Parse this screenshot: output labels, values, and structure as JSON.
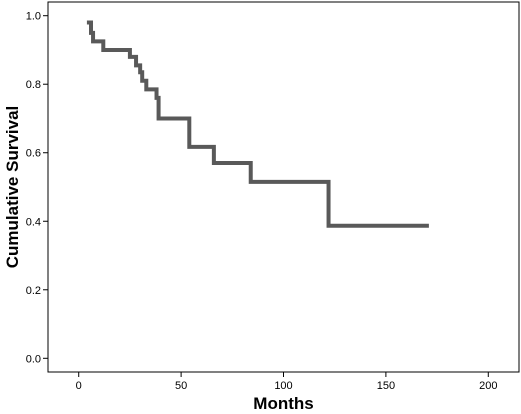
{
  "chart_data": {
    "type": "line",
    "xlabel": "Months",
    "ylabel": "Cumulative Survival",
    "xlim": [
      -15,
      215
    ],
    "ylim": [
      -0.04,
      1.04
    ],
    "x_ticks": [
      0,
      50,
      100,
      150,
      200
    ],
    "y_ticks": [
      0.0,
      0.2,
      0.4,
      0.6,
      0.8,
      1.0
    ],
    "x_tick_labels": [
      "0",
      "50",
      "100",
      "150",
      "200"
    ],
    "y_tick_labels": [
      "0.0",
      "0.2",
      "0.4",
      "0.6",
      "0.8",
      "1.0"
    ],
    "grid": false,
    "series": [
      {
        "step": true,
        "color": "#595959",
        "x": [
          4,
          6,
          7,
          9,
          12,
          25,
          28,
          30,
          31,
          33,
          38,
          39,
          54,
          66,
          84,
          122,
          171
        ],
        "y": [
          0.98,
          0.95,
          0.925,
          0.925,
          0.9,
          0.88,
          0.855,
          0.835,
          0.81,
          0.785,
          0.76,
          0.7,
          0.617,
          0.57,
          0.515,
          0.387,
          0.387
        ]
      }
    ]
  }
}
